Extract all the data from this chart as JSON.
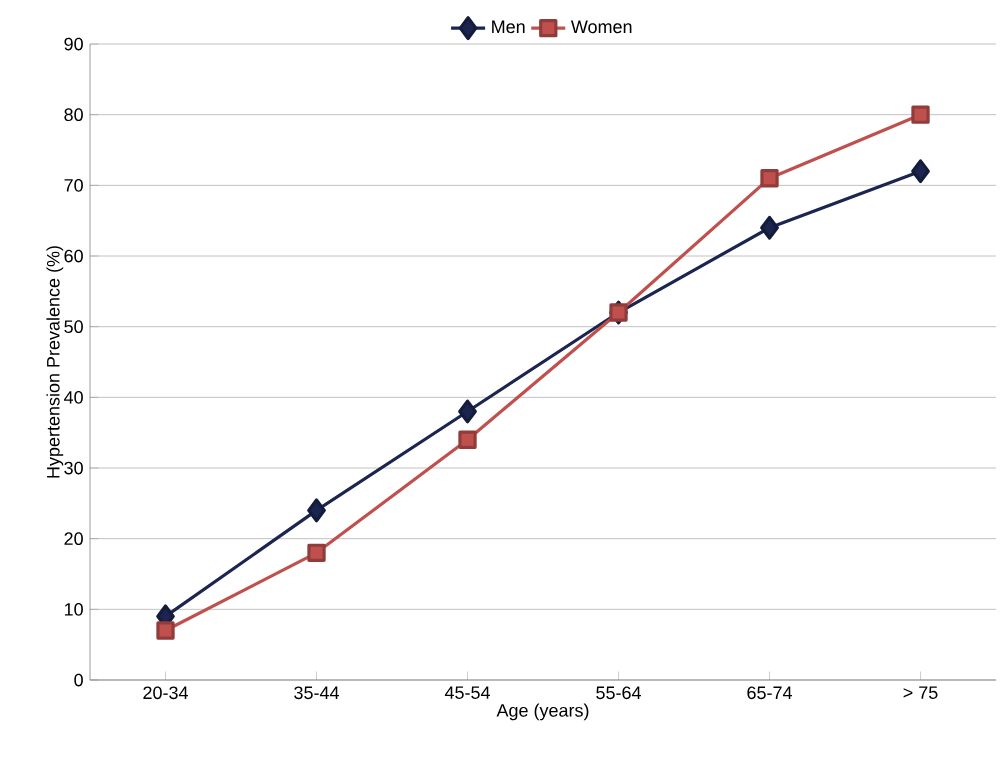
{
  "chart_data": {
    "type": "line",
    "xlabel": "Age (years)",
    "ylabel": "Hypertension Prevalence (%)",
    "categories": [
      "20-34",
      "35-44",
      "45-54",
      "55-64",
      "65-74",
      "> 75"
    ],
    "series": [
      {
        "name": "Men",
        "color": "#1b2550",
        "marker": "diamond",
        "values": [
          9,
          24,
          38,
          52,
          64,
          72
        ]
      },
      {
        "name": "Women",
        "color": "#c0504d",
        "marker": "square",
        "values": [
          7,
          18,
          34,
          52,
          71,
          80
        ]
      }
    ],
    "ylim": [
      0,
      90
    ],
    "yticks": [
      0,
      10,
      20,
      30,
      40,
      50,
      60,
      70,
      80,
      90
    ],
    "grid": "y",
    "legend": "top",
    "line_style": "solid"
  }
}
